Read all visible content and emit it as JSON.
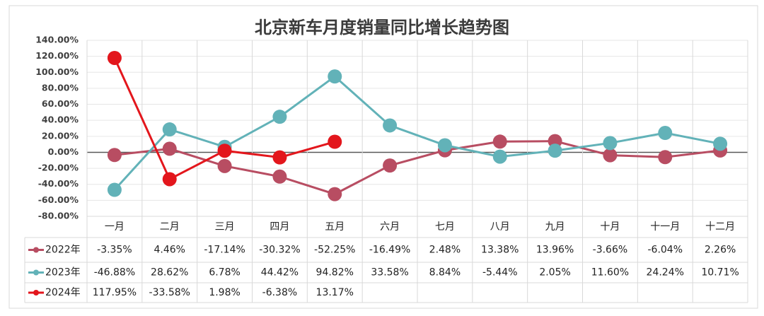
{
  "chart_data": {
    "type": "line",
    "title": "北京新车月度销量同比增长趋势图",
    "categories": [
      "一月",
      "二月",
      "三月",
      "四月",
      "五月",
      "六月",
      "七月",
      "八月",
      "九月",
      "十月",
      "十一月",
      "十二月"
    ],
    "series": [
      {
        "name": "2022年",
        "color": "#b84d62",
        "values": [
          -3.35,
          4.46,
          -17.14,
          -30.32,
          -52.25,
          -16.49,
          2.48,
          13.38,
          13.96,
          -3.66,
          -6.04,
          2.26
        ],
        "value_labels": [
          "-3.35%",
          "4.46%",
          "-17.14%",
          "-30.32%",
          "-52.25%",
          "-16.49%",
          "2.48%",
          "13.38%",
          "13.96%",
          "-3.66%",
          "-6.04%",
          "2.26%"
        ]
      },
      {
        "name": "2023年",
        "color": "#62b2b8",
        "values": [
          -46.88,
          28.62,
          6.78,
          44.42,
          94.82,
          33.58,
          8.84,
          -5.44,
          2.05,
          11.6,
          24.24,
          10.71
        ],
        "value_labels": [
          "-46.88%",
          "28.62%",
          "6.78%",
          "44.42%",
          "94.82%",
          "33.58%",
          "8.84%",
          "-5.44%",
          "2.05%",
          "11.60%",
          "24.24%",
          "10.71%"
        ]
      },
      {
        "name": "2024年",
        "color": "#e3161c",
        "values": [
          117.95,
          -33.58,
          1.98,
          -6.38,
          13.17,
          null,
          null,
          null,
          null,
          null,
          null,
          null
        ],
        "value_labels": [
          "117.95%",
          "-33.58%",
          "1.98%",
          "-6.38%",
          "13.17%",
          null,
          null,
          null,
          null,
          null,
          null,
          null
        ]
      }
    ],
    "ylim": [
      -80,
      140
    ],
    "yticks": [
      {
        "value": -80,
        "label": "-80.00%"
      },
      {
        "value": -60,
        "label": "-60.00%"
      },
      {
        "value": -40,
        "label": "-40.00%"
      },
      {
        "value": -20,
        "label": "-20.00%"
      },
      {
        "value": 0,
        "label": "0.00%"
      },
      {
        "value": 20,
        "label": "20.00%"
      },
      {
        "value": 40,
        "label": "40.00%"
      },
      {
        "value": 60,
        "label": "60.00%"
      },
      {
        "value": 80,
        "label": "80.00%"
      },
      {
        "value": 100,
        "label": "100.00%"
      },
      {
        "value": 120,
        "label": "120.00%"
      },
      {
        "value": 140,
        "label": "140.00%"
      }
    ],
    "grid": true,
    "data_table": true
  }
}
